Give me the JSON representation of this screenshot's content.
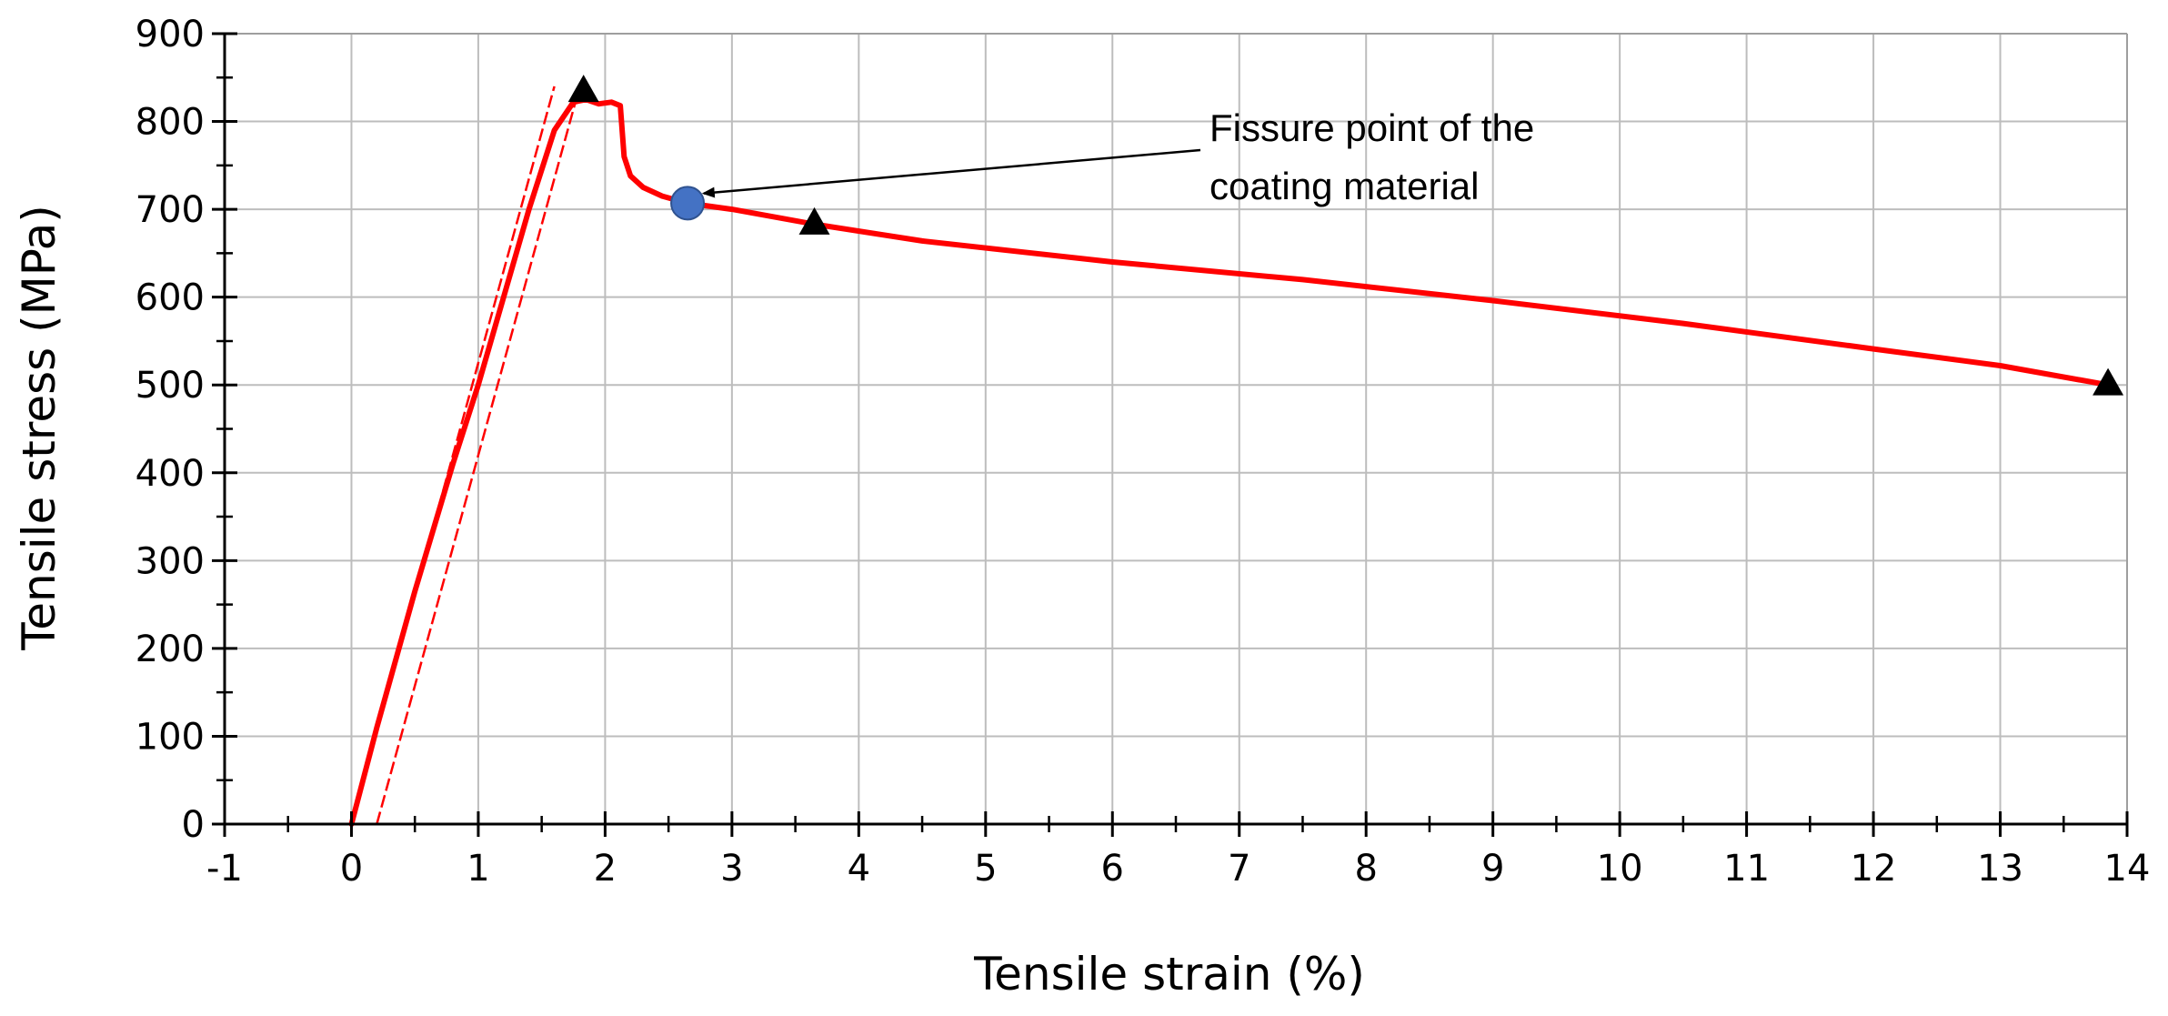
{
  "chart_data": {
    "type": "line",
    "xlabel": "Tensile strain (%)",
    "ylabel": "Tensile stress (MPa)",
    "xlim": [
      -1,
      14
    ],
    "ylim": [
      0,
      900
    ],
    "x_ticks": [
      -1,
      0,
      1,
      2,
      3,
      4,
      5,
      6,
      7,
      8,
      9,
      10,
      11,
      12,
      13,
      14
    ],
    "y_ticks": [
      0,
      100,
      200,
      300,
      400,
      500,
      600,
      700,
      800,
      900
    ],
    "grid": true,
    "series": [
      {
        "type": "line",
        "color": "#ff0000",
        "x": [
          0,
          0.2,
          0.5,
          0.8,
          1.0,
          1.2,
          1.4,
          1.6,
          1.75,
          1.85,
          1.95,
          2.05,
          2.12,
          2.15,
          2.2,
          2.3,
          2.45,
          2.65,
          3.0,
          3.65,
          4.5,
          6.0,
          7.5,
          9.0,
          10.5,
          12.0,
          13.0,
          13.85
        ],
        "y": [
          0,
          110,
          265,
          410,
          500,
          600,
          700,
          790,
          822,
          825,
          820,
          822,
          818,
          760,
          738,
          725,
          715,
          707,
          700,
          683,
          664,
          640,
          620,
          596,
          570,
          541,
          522,
          500
        ]
      }
    ],
    "reference_lines": [
      {
        "color": "#ff0000",
        "style": "dashed",
        "x": [
          0,
          1.6
        ],
        "y": [
          0,
          840
        ]
      },
      {
        "color": "#ff0000",
        "style": "dashed",
        "x": [
          0.2,
          1.8
        ],
        "y": [
          0,
          840
        ]
      }
    ],
    "triangle_markers": [
      {
        "x": 1.83,
        "y": 834
      },
      {
        "x": 3.65,
        "y": 683
      },
      {
        "x": 13.85,
        "y": 500
      }
    ],
    "point_markers": [
      {
        "x": 2.65,
        "y": 707,
        "color": "#4472c4"
      }
    ],
    "annotations": [
      {
        "lines": [
          "Fissure point of the",
          "coating material"
        ],
        "arrow_to": {
          "x": 2.72,
          "y": 714
        }
      }
    ]
  }
}
